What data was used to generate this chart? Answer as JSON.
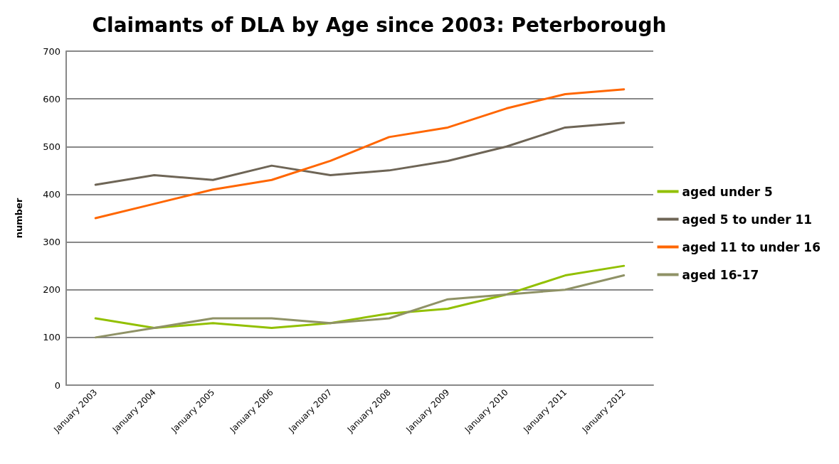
{
  "chart_data": {
    "type": "line",
    "title": "Claimants of DLA by Age since 2003: Peterborough",
    "ylabel": "number",
    "categories": [
      "January 2003",
      "January 2004",
      "January 2005",
      "January 2006",
      "January 2007",
      "January 2008",
      "January 2009",
      "January 2010",
      "January 2011",
      "January 2012"
    ],
    "series": [
      {
        "name": "aged under 5",
        "color": "#92c000",
        "values": [
          140,
          120,
          130,
          120,
          130,
          150,
          160,
          190,
          230,
          250
        ]
      },
      {
        "name": "aged 5 to under 11",
        "color": "#6e6556",
        "values": [
          420,
          440,
          430,
          460,
          440,
          450,
          470,
          500,
          540,
          550
        ]
      },
      {
        "name": "aged 11 to under 16",
        "color": "#ff6600",
        "values": [
          350,
          380,
          410,
          430,
          470,
          520,
          540,
          580,
          610,
          620
        ]
      },
      {
        "name": "aged 16-17",
        "color": "#8f9266",
        "values": [
          100,
          120,
          140,
          140,
          130,
          140,
          180,
          190,
          200,
          230
        ]
      }
    ],
    "ylim": [
      0,
      700
    ],
    "yticks": [
      0,
      100,
      200,
      300,
      400,
      500,
      600,
      700
    ],
    "grid": "y",
    "legend": "right",
    "marker": "none",
    "line_style": "solid"
  }
}
